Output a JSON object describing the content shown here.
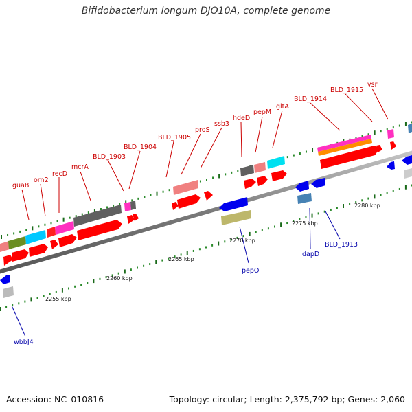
{
  "title": "Bifidobacterium longum DJO10A, complete genome",
  "footer": {
    "accession": "Accession: NC_010816",
    "topology": "Topology: circular; Length: 2,375,792 bp; Genes: 2,060"
  },
  "kbp_ticks": [
    "2255 kbp",
    "2260 kbp",
    "2265 kbp",
    "2270 kbp",
    "2275 kbp",
    "2280 kbp"
  ],
  "gene_labels_top": [
    "guaB",
    "orn2",
    "recD",
    "mcrA",
    "BLD_1903",
    "BLD_1904",
    "BLD_1905",
    "proS",
    "ssb3",
    "hdeD",
    "pepM",
    "gltA",
    "BLD_1914",
    "BLD_1915",
    "vsr"
  ],
  "gene_labels_bottom": [
    "wbbJ4",
    "pepO",
    "dapD",
    "BLD_1913"
  ],
  "colors": {
    "forward_gene": "#ff0000",
    "reverse_gene": "#0000ee",
    "gene_label_forward": "#cc0000",
    "gene_label_reverse": "#0000aa",
    "tick_green": "#2a8a2a",
    "backbone": "#888888"
  }
}
